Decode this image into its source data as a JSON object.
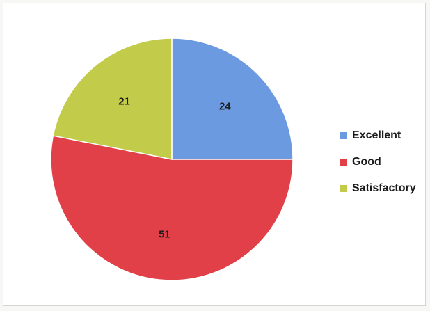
{
  "chart_data": {
    "type": "pie",
    "categories": [
      "Excellent",
      "Good",
      "Satisfactory"
    ],
    "values": [
      24,
      51,
      21
    ],
    "colors": [
      "#6b9ae0",
      "#e24048",
      "#c2cc4a"
    ],
    "data_labels": [
      "24",
      "51",
      "21"
    ],
    "legend": {
      "placement": "right",
      "entries": [
        "Excellent",
        "Good",
        "Satisfactory"
      ]
    }
  }
}
